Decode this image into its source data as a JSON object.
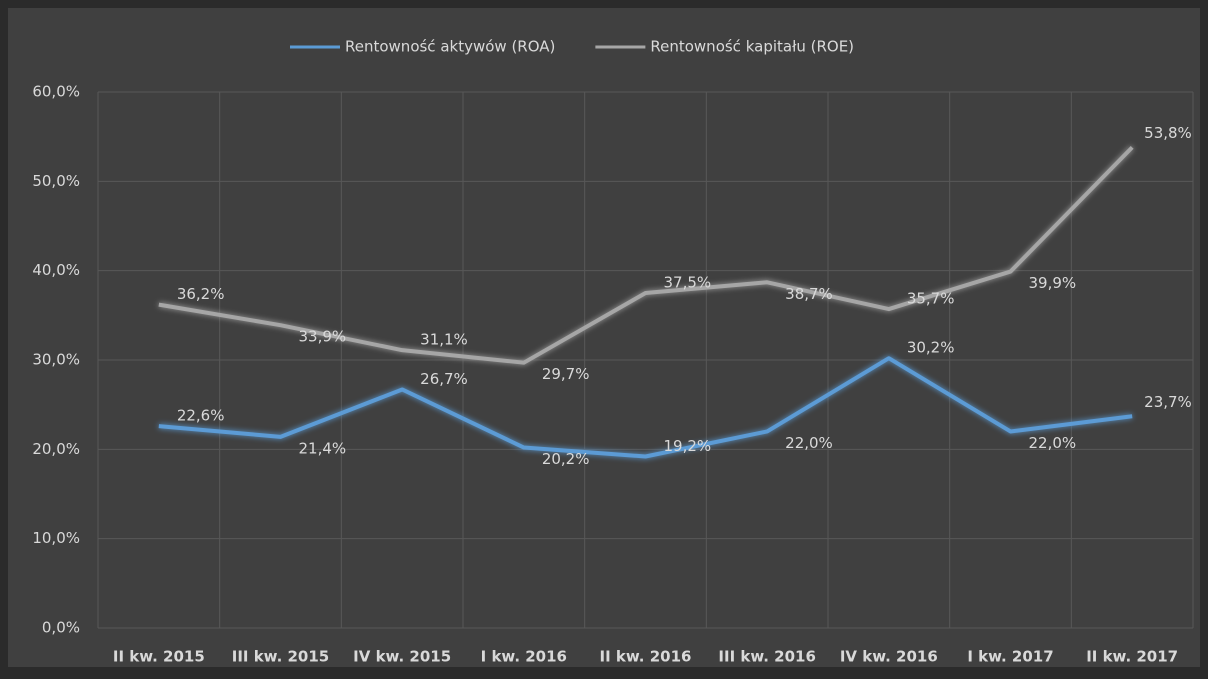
{
  "chart_data": {
    "type": "line",
    "categories": [
      "II kw. 2015",
      "III kw. 2015",
      "IV kw. 2015",
      "I kw. 2016",
      "II kw. 2016",
      "III kw. 2016",
      "IV kw. 2016",
      "I kw. 2017",
      "II kw. 2017"
    ],
    "series": [
      {
        "name": "Rentowność aktywów (ROA)",
        "color": "#5b9bd5",
        "values": [
          22.6,
          21.4,
          26.7,
          20.2,
          19.2,
          22.0,
          30.2,
          22.0,
          23.7
        ],
        "value_labels": [
          "22,6%",
          "21,4%",
          "26,7%",
          "20,2%",
          "19,2%",
          "22,0%",
          "30,2%",
          "22,0%",
          "23,7%"
        ]
      },
      {
        "name": "Rentowność kapitału (ROE)",
        "color": "#a6a6a6",
        "values": [
          36.2,
          33.9,
          31.1,
          29.7,
          37.5,
          38.7,
          35.7,
          39.9,
          53.8
        ],
        "value_labels": [
          "36,2%",
          "33,9%",
          "31,1%",
          "29,7%",
          "37,5%",
          "38,7%",
          "35,7%",
          "39,9%",
          "53,8%"
        ]
      }
    ],
    "ylim": [
      0,
      60
    ],
    "yticks": [
      {
        "value": 0,
        "label": "0,0%"
      },
      {
        "value": 10,
        "label": "10,0%"
      },
      {
        "value": 20,
        "label": "20,0%"
      },
      {
        "value": 30,
        "label": "30,0%"
      },
      {
        "value": 40,
        "label": "40,0%"
      },
      {
        "value": 50,
        "label": "50,0%"
      },
      {
        "value": 60,
        "label": "60,0%"
      }
    ],
    "grid": true,
    "legend": "top"
  }
}
